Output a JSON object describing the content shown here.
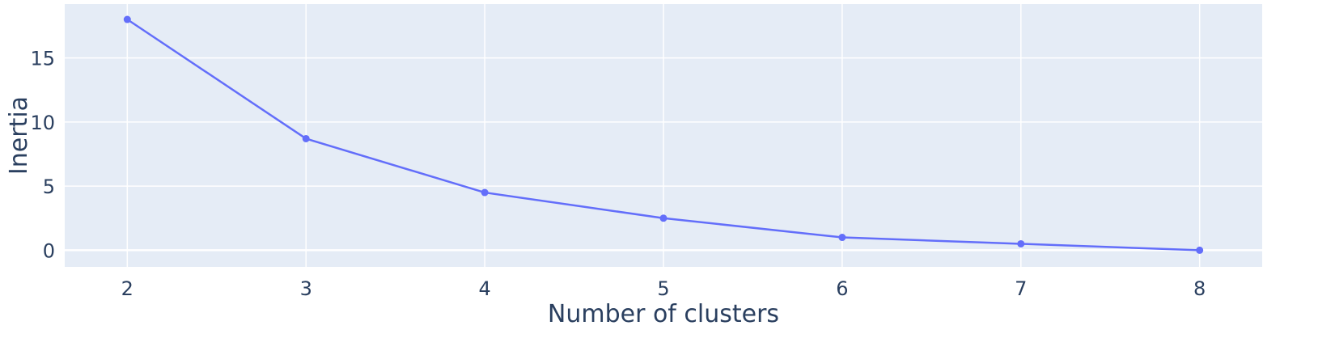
{
  "chart_data": {
    "type": "line",
    "title": "",
    "xlabel": "Number of clusters",
    "ylabel": "Inertia",
    "x": [
      2,
      3,
      4,
      5,
      6,
      7,
      8
    ],
    "series": [
      {
        "values": [
          18.0,
          8.7,
          4.5,
          2.5,
          1.0,
          0.5,
          0.0
        ]
      }
    ],
    "xticks": [
      2,
      3,
      4,
      5,
      6,
      7,
      8
    ],
    "yticks": [
      0,
      5,
      10,
      15
    ],
    "xlim": [
      1.65,
      8.35
    ],
    "ylim": [
      -1.3,
      19.2
    ],
    "grid": true,
    "markers": true
  },
  "colors": {
    "plot_bg": "#e5ecf6",
    "grid": "#ffffff",
    "line": "#636efa",
    "text": "#2a3f5f"
  }
}
